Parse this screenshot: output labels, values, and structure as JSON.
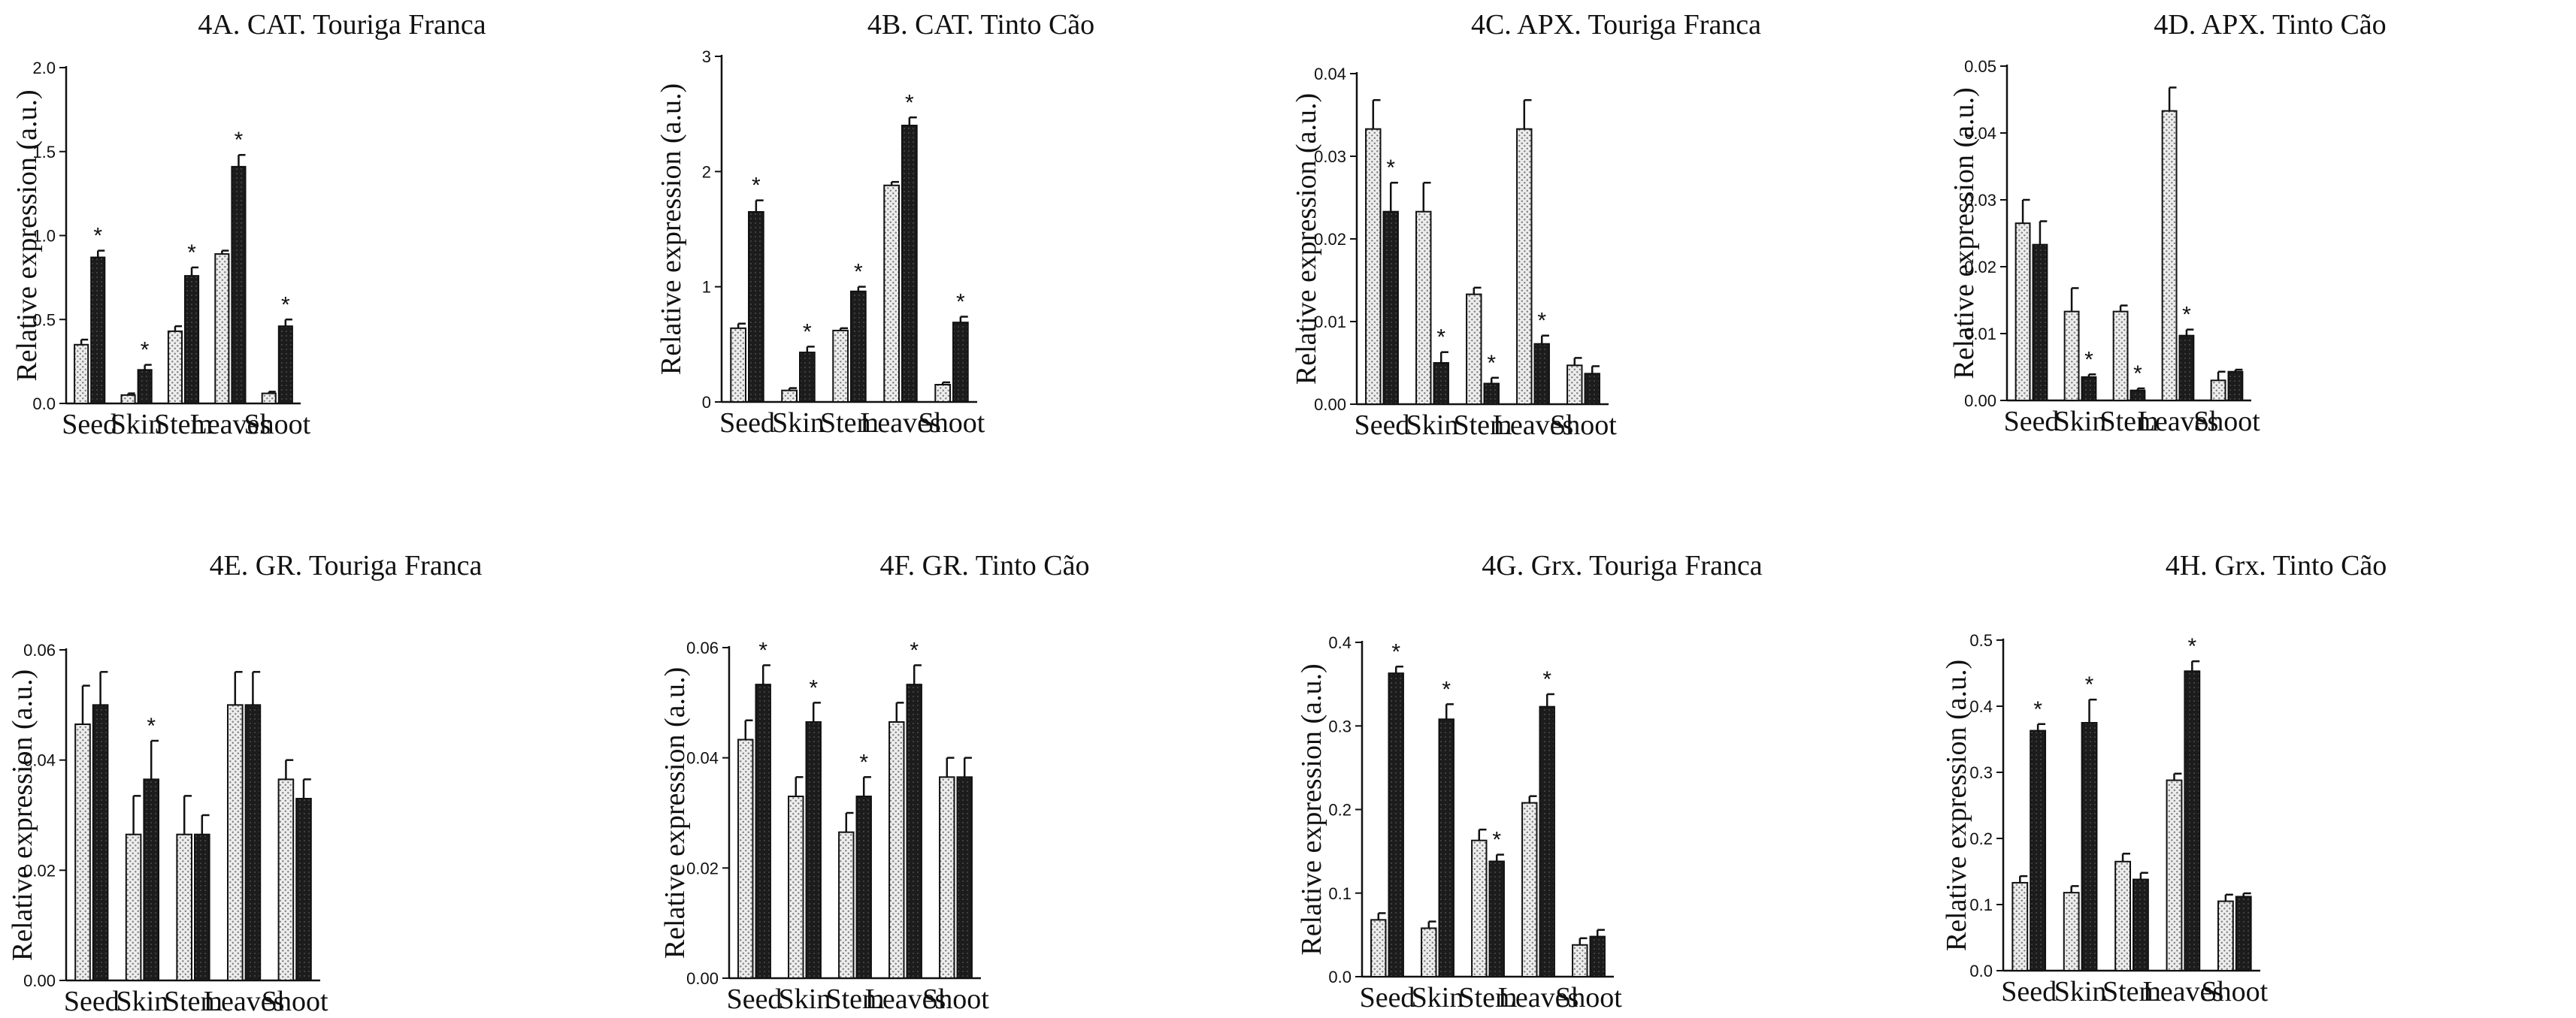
{
  "figure": {
    "series_colors": {
      "light": "#e2e2e2",
      "dark": "#2a2a2a",
      "line": "#111111"
    }
  },
  "chart_data": [
    {
      "type": "bar",
      "title": "4A. CAT. Touriga Franca",
      "ylabel": "Relative expression (a.u.)",
      "categories": [
        "Seed",
        "Skin",
        "Stem",
        "Leaves",
        "Shoot"
      ],
      "ylim": [
        0,
        2.0
      ],
      "yticks": [
        "0.0",
        "0.5",
        "1.0",
        "1.5",
        "2.0"
      ],
      "series": [
        {
          "values": [
            0.35,
            0.05,
            0.43,
            0.89,
            0.06
          ],
          "errors": [
            0.03,
            0.01,
            0.03,
            0.02,
            0.01
          ]
        },
        {
          "values": [
            0.87,
            0.2,
            0.76,
            1.41,
            0.46
          ],
          "errors": [
            0.04,
            0.03,
            0.05,
            0.07,
            0.04
          ]
        }
      ],
      "significant": [
        true,
        true,
        true,
        true,
        true
      ],
      "star": "*"
    },
    {
      "type": "bar",
      "title": "4B. CAT. Tinto Cão",
      "ylabel": "Relative expression (a.u.)",
      "categories": [
        "Seed",
        "Skin",
        "Stem",
        "Leaves",
        "Shoot"
      ],
      "ylim": [
        0,
        3
      ],
      "yticks": [
        "0",
        "1",
        "2",
        "3"
      ],
      "series": [
        {
          "values": [
            0.64,
            0.1,
            0.62,
            1.88,
            0.15
          ],
          "errors": [
            0.04,
            0.02,
            0.02,
            0.03,
            0.02
          ]
        },
        {
          "values": [
            1.65,
            0.43,
            0.96,
            2.4,
            0.69
          ],
          "errors": [
            0.1,
            0.05,
            0.04,
            0.07,
            0.05
          ]
        }
      ],
      "significant": [
        true,
        true,
        true,
        true,
        true
      ],
      "star": "*"
    },
    {
      "type": "bar",
      "title": "4C.  APX. Touriga Franca",
      "ylabel": "Relative expression (a.u.)",
      "categories": [
        "Seed",
        "Skin",
        "Stem",
        "Leaves",
        "Shoot"
      ],
      "ylim": [
        0,
        0.04
      ],
      "yticks": [
        "0.00",
        "0.01",
        "0.02",
        "0.03",
        "0.04"
      ],
      "series": [
        {
          "values": [
            0.0333,
            0.0233,
            0.0133,
            0.0333,
            0.0047
          ],
          "errors": [
            0.0035,
            0.0035,
            0.0008,
            0.0035,
            0.0009
          ]
        },
        {
          "values": [
            0.0233,
            0.005,
            0.0025,
            0.0073,
            0.0037
          ],
          "errors": [
            0.0035,
            0.0013,
            0.0007,
            0.001,
            0.0009
          ]
        }
      ],
      "significant": [
        true,
        true,
        true,
        true,
        false
      ],
      "star": "*"
    },
    {
      "type": "bar",
      "title": "4D.  APX. Tinto Cão",
      "ylabel": "Relative expression (a.u.)",
      "categories": [
        "Seed",
        "Skin",
        "Stem",
        "Leaves",
        "Shoot"
      ],
      "ylim": [
        0,
        0.05
      ],
      "yticks": [
        "0.00",
        "0.01",
        "0.02",
        "0.03",
        "0.04",
        "0.05"
      ],
      "series": [
        {
          "values": [
            0.0265,
            0.0133,
            0.0133,
            0.0433,
            0.003
          ],
          "errors": [
            0.0035,
            0.0035,
            0.0009,
            0.0035,
            0.0013
          ]
        },
        {
          "values": [
            0.0233,
            0.0035,
            0.0015,
            0.0097,
            0.0043
          ],
          "errors": [
            0.0035,
            0.0004,
            0.0003,
            0.0009,
            0.0003
          ]
        }
      ],
      "significant": [
        false,
        true,
        true,
        true,
        false
      ],
      "star": "*"
    },
    {
      "type": "bar",
      "title": "4E. GR. Touriga Franca",
      "ylabel": "Relative expression (a.u.)",
      "categories": [
        "Seed",
        "Skin",
        "Stem",
        "Leaves",
        "Shoot"
      ],
      "ylim": [
        0,
        0.06
      ],
      "yticks": [
        "0.00",
        "0.02",
        "0.04",
        "0.06"
      ],
      "series": [
        {
          "values": [
            0.0465,
            0.0265,
            0.0265,
            0.05,
            0.0365
          ],
          "errors": [
            0.007,
            0.007,
            0.007,
            0.006,
            0.0035
          ]
        },
        {
          "values": [
            0.05,
            0.0365,
            0.0265,
            0.05,
            0.033
          ],
          "errors": [
            0.006,
            0.007,
            0.0035,
            0.006,
            0.0035
          ]
        }
      ],
      "significant": [
        false,
        true,
        false,
        false,
        false
      ],
      "star": "*"
    },
    {
      "type": "bar",
      "title": "4F. GR. Tinto Cão",
      "ylabel": "Relative expression (a.u.)",
      "categories": [
        "Seed",
        "Skin",
        "Stem",
        "Leaves",
        "Shoot"
      ],
      "ylim": [
        0,
        0.06
      ],
      "yticks": [
        "0.00",
        "0.02",
        "0.04",
        "0.06"
      ],
      "series": [
        {
          "values": [
            0.0433,
            0.033,
            0.0265,
            0.0465,
            0.0365
          ],
          "errors": [
            0.0035,
            0.0035,
            0.0035,
            0.0035,
            0.0035
          ]
        },
        {
          "values": [
            0.0533,
            0.0465,
            0.033,
            0.0533,
            0.0365
          ],
          "errors": [
            0.0035,
            0.0035,
            0.0035,
            0.0035,
            0.0035
          ]
        }
      ],
      "significant": [
        true,
        true,
        true,
        true,
        false
      ],
      "star": "*"
    },
    {
      "type": "bar",
      "title": "4G. Grx. Touriga Franca",
      "ylabel": "Relative expression (a.u.)",
      "categories": [
        "Seed",
        "Skin",
        "Stem",
        "Leaves",
        "Shoot"
      ],
      "ylim": [
        0,
        0.4
      ],
      "yticks": [
        "0.0",
        "0.1",
        "0.2",
        "0.3",
        "0.4"
      ],
      "series": [
        {
          "values": [
            0.068,
            0.058,
            0.163,
            0.208,
            0.038
          ],
          "errors": [
            0.008,
            0.008,
            0.013,
            0.008,
            0.008
          ]
        },
        {
          "values": [
            0.363,
            0.308,
            0.138,
            0.323,
            0.048
          ],
          "errors": [
            0.008,
            0.018,
            0.008,
            0.015,
            0.008
          ]
        }
      ],
      "significant": [
        true,
        true,
        true,
        true,
        false
      ],
      "star": "*"
    },
    {
      "type": "bar",
      "title": "4H. Grx. Tinto Cão",
      "ylabel": "Relative expression (a.u.)",
      "categories": [
        "Seed",
        "Skin",
        "Stem",
        "Leaves",
        "Shoot"
      ],
      "ylim": [
        0,
        0.5
      ],
      "yticks": [
        "0.0",
        "0.1",
        "0.2",
        "0.3",
        "0.4",
        "0.5"
      ],
      "series": [
        {
          "values": [
            0.133,
            0.118,
            0.165,
            0.288,
            0.105
          ],
          "errors": [
            0.01,
            0.01,
            0.012,
            0.01,
            0.01
          ]
        },
        {
          "values": [
            0.363,
            0.375,
            0.138,
            0.453,
            0.112
          ],
          "errors": [
            0.01,
            0.035,
            0.01,
            0.015,
            0.005
          ]
        }
      ],
      "significant": [
        true,
        true,
        false,
        true,
        false
      ],
      "star": "*"
    }
  ]
}
